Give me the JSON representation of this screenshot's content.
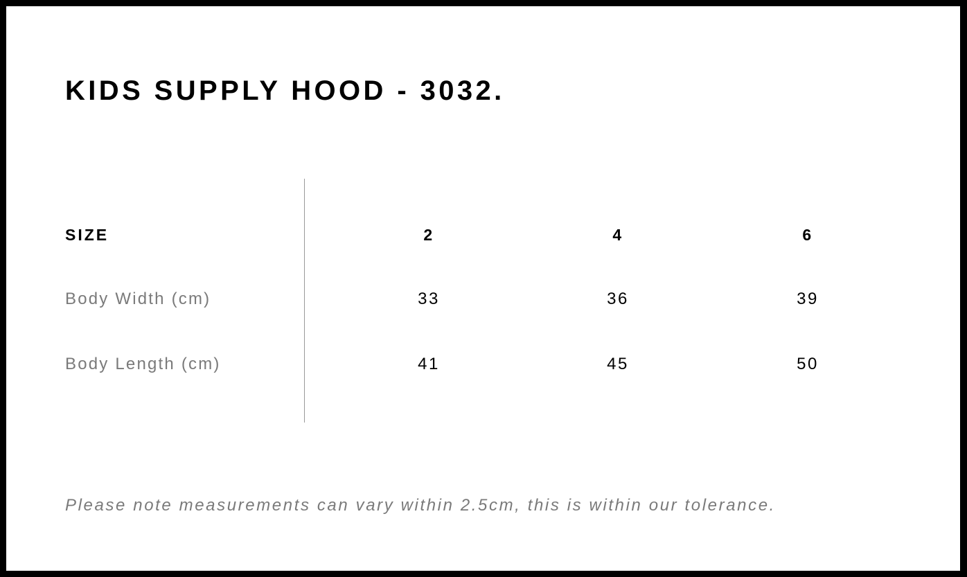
{
  "title": "KIDS SUPPLY HOOD - 3032.",
  "table": {
    "header": {
      "label": "SIZE",
      "values": [
        "2",
        "4",
        "6"
      ]
    },
    "rows": [
      {
        "label": "Body Width (cm)",
        "values": [
          "33",
          "36",
          "39"
        ]
      },
      {
        "label": "Body Length (cm)",
        "values": [
          "41",
          "45",
          "50"
        ]
      }
    ]
  },
  "note": "Please note measurements can vary within 2.5cm, this is within our tolerance."
}
